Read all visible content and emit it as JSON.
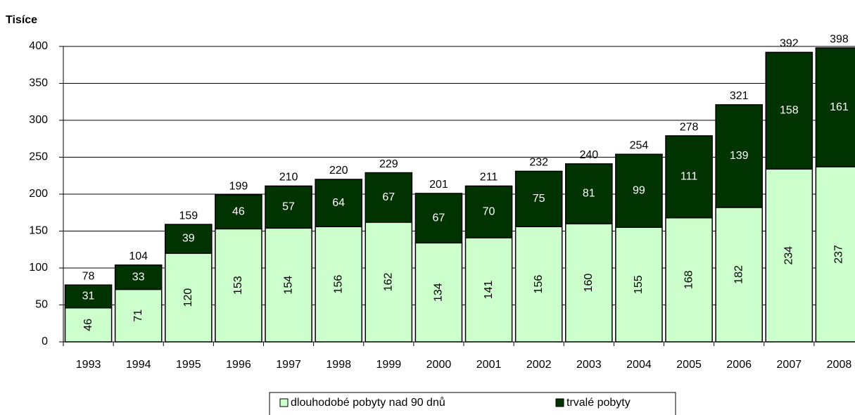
{
  "chart_data": {
    "type": "stacked_bar",
    "y_label": "Tisíce",
    "categories": [
      "1993",
      "1994",
      "1995",
      "1996",
      "1997",
      "1998",
      "1999",
      "2000",
      "2001",
      "2002",
      "2003",
      "2004",
      "2005",
      "2006",
      "2007",
      "2008"
    ],
    "series": [
      {
        "name": "dlouhodobé pobyty nad 90 dnů",
        "color": "#ccffcc",
        "values": [
          46,
          71,
          120,
          153,
          154,
          156,
          162,
          134,
          141,
          156,
          160,
          155,
          168,
          182,
          234,
          237
        ]
      },
      {
        "name": "trvalé pobyty",
        "color": "#003300",
        "values": [
          31,
          33,
          39,
          46,
          57,
          64,
          67,
          67,
          70,
          75,
          81,
          99,
          111,
          139,
          158,
          161
        ]
      }
    ],
    "totals": [
      78,
      104,
      159,
      199,
      210,
      220,
      229,
      201,
      211,
      232,
      240,
      254,
      278,
      321,
      392,
      398
    ],
    "ylim": [
      0,
      400
    ],
    "yticks": [
      0,
      50,
      100,
      150,
      200,
      250,
      300,
      350,
      400
    ],
    "grid": true
  }
}
